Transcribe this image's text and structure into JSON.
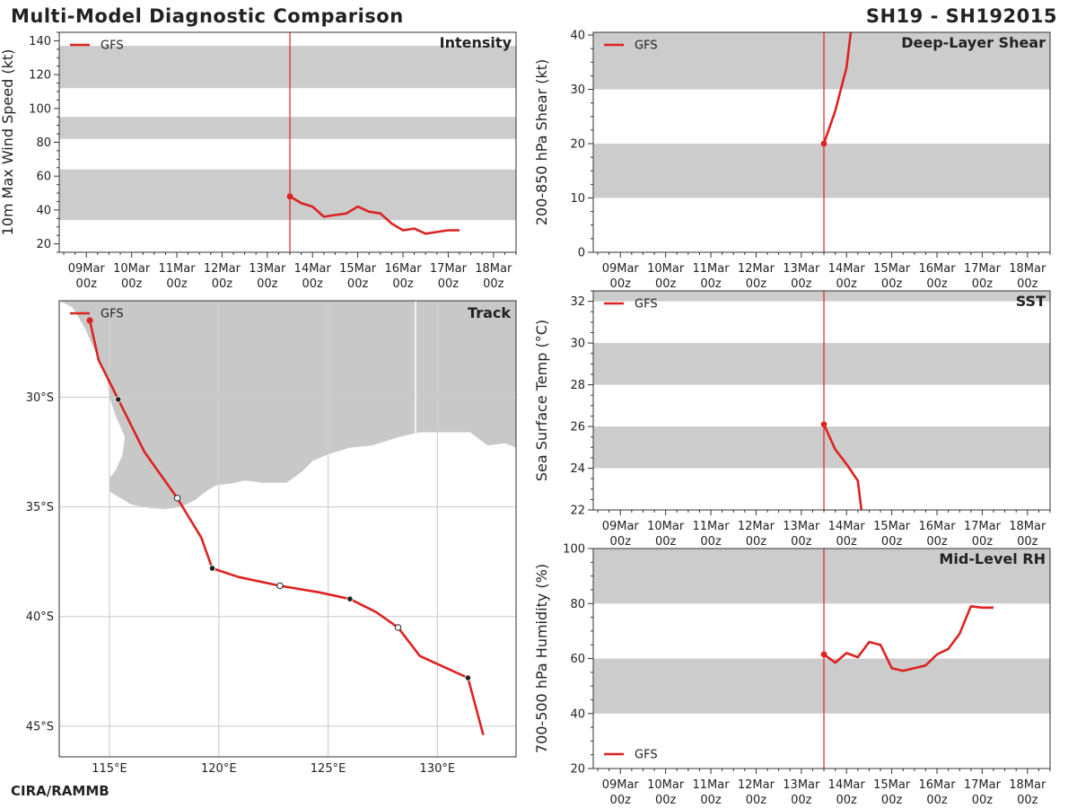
{
  "header": {
    "title": "Multi-Model Diagnostic Comparison",
    "storm_id": "SH19 - SH192015"
  },
  "footer": {
    "credit": "CIRA/RAMMB"
  },
  "colors": {
    "gfs": "#dd2222",
    "band": "#cccccc",
    "land": "#c8c8c8",
    "grid": "#cfcfcf",
    "frame": "#333333"
  },
  "time_axis": {
    "dates": [
      "09Mar",
      "10Mar",
      "11Mar",
      "12Mar",
      "13Mar",
      "14Mar",
      "15Mar",
      "16Mar",
      "17Mar",
      "18Mar"
    ],
    "hour_label": "00z",
    "range_days": [
      -0.6,
      9.5
    ],
    "init_marker_day": 4.5
  },
  "chart_data": [
    {
      "id": "intensity",
      "type": "line",
      "title": "Intensity",
      "ylabel": "10m Max Wind Speed (kt)",
      "ylim": [
        15,
        145
      ],
      "yticks": [
        20,
        40,
        60,
        80,
        100,
        120,
        140
      ],
      "bands": [
        [
          34,
          64
        ],
        [
          82,
          95
        ],
        [
          112,
          137
        ]
      ],
      "legend": "GFS",
      "legend_pos": "top-left",
      "series": [
        {
          "name": "GFS",
          "x": [
            4.5,
            4.75,
            5.0,
            5.25,
            5.5,
            5.75,
            6.0,
            6.25,
            6.5,
            6.75,
            7.0,
            7.25,
            7.5,
            7.75,
            8.0,
            8.25
          ],
          "y": [
            48,
            44,
            42,
            36,
            37,
            38,
            42,
            39,
            38,
            32,
            28,
            29,
            26,
            27,
            28,
            28
          ]
        }
      ]
    },
    {
      "id": "shear",
      "type": "line",
      "title": "Deep-Layer Shear",
      "ylabel": "200-850 hPa Shear (kt)",
      "ylim": [
        0,
        40.5
      ],
      "yticks": [
        0,
        10,
        20,
        30,
        40
      ],
      "bands": [
        [
          10,
          20
        ],
        [
          30,
          40.5
        ]
      ],
      "legend": "GFS",
      "legend_pos": "top-left",
      "series": [
        {
          "name": "GFS",
          "x": [
            4.5,
            4.75,
            5.0,
            5.1
          ],
          "y": [
            20,
            26,
            34,
            41
          ]
        }
      ]
    },
    {
      "id": "sst",
      "type": "line",
      "title": "SST",
      "ylabel": "Sea Surface Temp (°C)",
      "ylim": [
        22,
        32.5
      ],
      "yticks": [
        22,
        24,
        26,
        28,
        30,
        32
      ],
      "bands": [
        [
          24,
          26
        ],
        [
          28,
          30
        ],
        [
          32,
          32.5
        ]
      ],
      "legend": "GFS",
      "legend_pos": "top-left",
      "series": [
        {
          "name": "GFS",
          "x": [
            4.5,
            4.75,
            5.0,
            5.25,
            5.33
          ],
          "y": [
            26.1,
            24.9,
            24.2,
            23.4,
            22
          ]
        }
      ]
    },
    {
      "id": "rh",
      "type": "line",
      "title": "Mid-Level RH",
      "ylabel": "700-500 hPa Humidity (%)",
      "ylim": [
        20,
        100
      ],
      "yticks": [
        20,
        40,
        60,
        80,
        100
      ],
      "bands": [
        [
          40,
          60
        ],
        [
          80,
          100
        ]
      ],
      "legend": "GFS",
      "legend_pos": "bottom-left",
      "series": [
        {
          "name": "GFS",
          "x": [
            4.5,
            4.75,
            5.0,
            5.25,
            5.5,
            5.75,
            6.0,
            6.25,
            6.5,
            6.75,
            7.0,
            7.25,
            7.5,
            7.75,
            8.0,
            8.25
          ],
          "y": [
            61.5,
            58.5,
            62,
            60.5,
            66,
            65,
            56.5,
            55.5,
            56.5,
            57.5,
            61.5,
            63.5,
            69,
            79,
            78.5,
            78.5
          ]
        }
      ]
    },
    {
      "id": "track",
      "type": "map",
      "title": "Track",
      "xlim": [
        112.7,
        133.6
      ],
      "ylim": [
        -46.4,
        -25.6
      ],
      "xticks": [
        115,
        120,
        125,
        130
      ],
      "xticklabels": [
        "115°E",
        "120°E",
        "125°E",
        "130°E"
      ],
      "yticks": [
        -30,
        -35,
        -40,
        -45
      ],
      "yticklabels": [
        "30°S",
        "35°S",
        "40°S",
        "45°S"
      ],
      "legend": "GFS",
      "legend_pos": "top-left",
      "land": [
        [
          112.7,
          -25.6
        ],
        [
          115.5,
          -25.6
        ],
        [
          133.6,
          -25.6
        ],
        [
          133.6,
          -32.3
        ],
        [
          133.1,
          -32.1
        ],
        [
          132.3,
          -32.2
        ],
        [
          131.5,
          -31.6
        ],
        [
          130.4,
          -31.6
        ],
        [
          129.2,
          -31.6
        ],
        [
          128.3,
          -31.8
        ],
        [
          127.0,
          -32.2
        ],
        [
          126.0,
          -32.3
        ],
        [
          125.0,
          -32.6
        ],
        [
          124.3,
          -32.9
        ],
        [
          123.8,
          -33.4
        ],
        [
          123.1,
          -33.9
        ],
        [
          122.0,
          -33.9
        ],
        [
          121.2,
          -33.8
        ],
        [
          120.5,
          -33.95
        ],
        [
          119.9,
          -34.0
        ],
        [
          119.4,
          -34.3
        ],
        [
          118.9,
          -34.7
        ],
        [
          118.5,
          -34.9
        ],
        [
          118.0,
          -35.05
        ],
        [
          117.5,
          -35.1
        ],
        [
          116.8,
          -35.05
        ],
        [
          116.0,
          -34.9
        ],
        [
          115.5,
          -34.6
        ],
        [
          115.0,
          -34.3
        ],
        [
          115.0,
          -33.7
        ],
        [
          115.3,
          -33.3
        ],
        [
          115.6,
          -32.6
        ],
        [
          115.7,
          -31.8
        ],
        [
          115.3,
          -30.9
        ],
        [
          115.0,
          -30.0
        ],
        [
          114.9,
          -29.2
        ],
        [
          114.6,
          -28.4
        ],
        [
          114.2,
          -27.6
        ],
        [
          113.9,
          -26.9
        ],
        [
          113.5,
          -26.2
        ],
        [
          113.3,
          -25.9
        ],
        [
          112.9,
          -25.7
        ],
        [
          112.7,
          -25.6
        ]
      ],
      "border_lon": 129.0,
      "border_lat_top": -25.6,
      "border_lat_bottom": -31.7,
      "series": [
        {
          "name": "GFS",
          "lon": [
            114.1,
            114.5,
            115.4,
            116.6,
            118.1,
            119.2,
            119.7,
            120.9,
            122.8,
            124.6,
            126.0,
            127.2,
            128.2,
            129.2,
            131.4,
            132.1
          ],
          "lat": [
            -26.5,
            -28.3,
            -30.1,
            -32.5,
            -34.6,
            -36.4,
            -37.8,
            -38.2,
            -38.6,
            -38.9,
            -39.2,
            -39.8,
            -40.5,
            -41.8,
            -42.8,
            -45.4
          ],
          "markers": [
            {
              "i": 0,
              "kind": "start"
            },
            {
              "i": 2,
              "kind": "filled"
            },
            {
              "i": 4,
              "kind": "open"
            },
            {
              "i": 6,
              "kind": "filled"
            },
            {
              "i": 8,
              "kind": "open"
            },
            {
              "i": 10,
              "kind": "filled"
            },
            {
              "i": 12,
              "kind": "open"
            },
            {
              "i": 14,
              "kind": "filled"
            }
          ]
        }
      ]
    }
  ]
}
